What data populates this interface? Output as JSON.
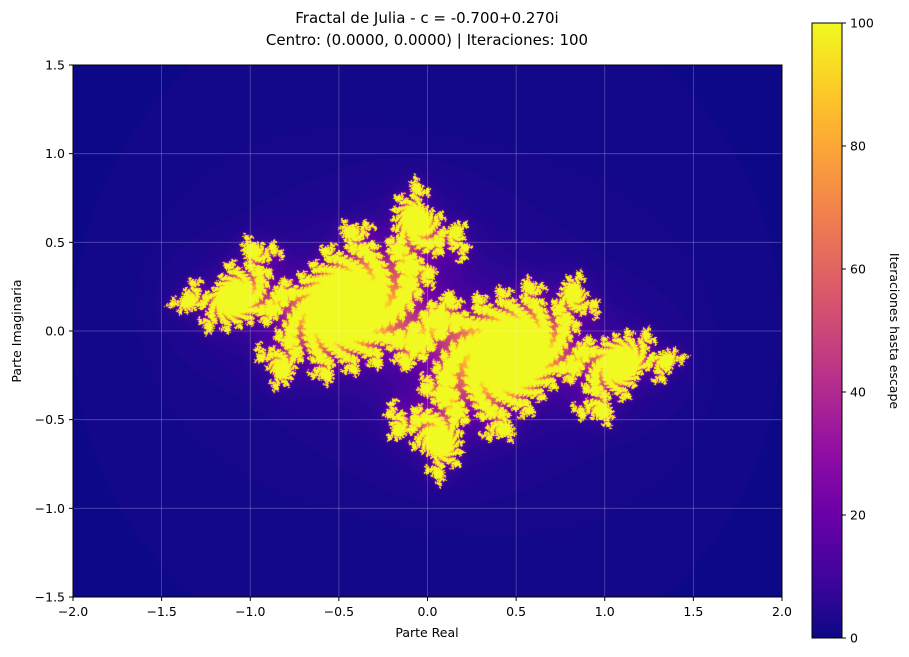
{
  "chart_data": [
    {
      "type": "heatmap",
      "title": "Fractal de Julia - c = -0.700+0.270i",
      "subtitle": "Centro: (0.0000, 0.0000) | Iteraciones: 100",
      "xlabel": "Parte Real",
      "ylabel": "Parte Imaginaria",
      "xlim": [
        -2.0,
        2.0
      ],
      "ylim": [
        -1.5,
        1.5
      ],
      "xticks": [
        -2.0,
        -1.5,
        -1.0,
        -0.5,
        0.0,
        0.5,
        1.0,
        1.5,
        2.0
      ],
      "xtick_labels": [
        "−2.0",
        "−1.5",
        "−1.0",
        "−0.5",
        "0.0",
        "0.5",
        "1.0",
        "1.5",
        "2.0"
      ],
      "yticks": [
        -1.5,
        -1.0,
        -0.5,
        0.0,
        0.5,
        1.0,
        1.5
      ],
      "ytick_labels": [
        "−1.5",
        "−1.0",
        "−0.5",
        "0.0",
        "0.5",
        "1.0",
        "1.5"
      ],
      "grid": true,
      "fractal": {
        "c_real": -0.7,
        "c_imag": 0.27,
        "center": [
          0.0,
          0.0
        ],
        "max_iter": 100
      },
      "colormap": "plasma",
      "colorbar": {
        "label": "Iteraciones hasta escape",
        "range": [
          0,
          100
        ],
        "ticks": [
          0,
          20,
          40,
          60,
          80,
          100
        ],
        "tick_labels": [
          "0",
          "20",
          "40",
          "60",
          "80",
          "100"
        ]
      }
    }
  ]
}
